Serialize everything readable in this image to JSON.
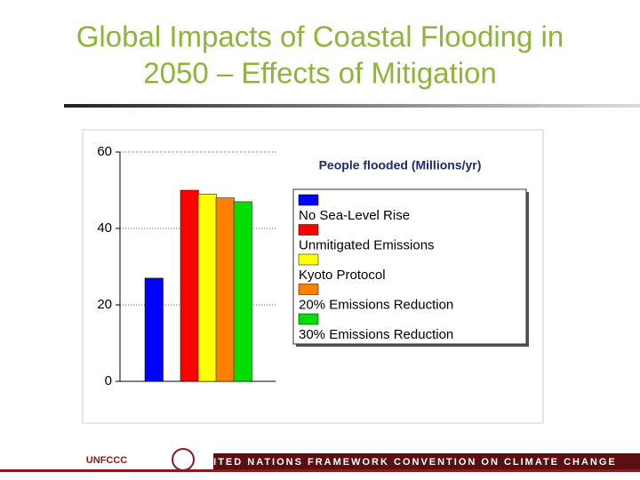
{
  "title": "Global Impacts of Coastal Flooding in 2050 – Effects of Mitigation",
  "footer": {
    "logo": "UNFCCC",
    "banner": "UNITED NATIONS FRAMEWORK CONVENTION ON CLIMATE CHANGE"
  },
  "chart_data": {
    "type": "bar",
    "legend_title": "People flooded (Millions/yr)",
    "series": [
      {
        "name": "No Sea-Level Rise",
        "color": "#0000ff",
        "values": [
          27
        ]
      },
      {
        "name": "Unmitigated Emissions",
        "color": "#ff0000",
        "values": [
          50
        ]
      },
      {
        "name": "Kyoto Protocol",
        "color": "#ffff00",
        "values": [
          49
        ]
      },
      {
        "name": "20% Emissions Reduction",
        "color": "#ff8000",
        "values": [
          48
        ]
      },
      {
        "name": "30% Emissions Reduction",
        "color": "#00dd00",
        "values": [
          47
        ]
      }
    ],
    "ylim": [
      0,
      60
    ],
    "yticks": [
      0,
      20,
      40,
      60
    ],
    "grid": true,
    "legend": "right"
  }
}
